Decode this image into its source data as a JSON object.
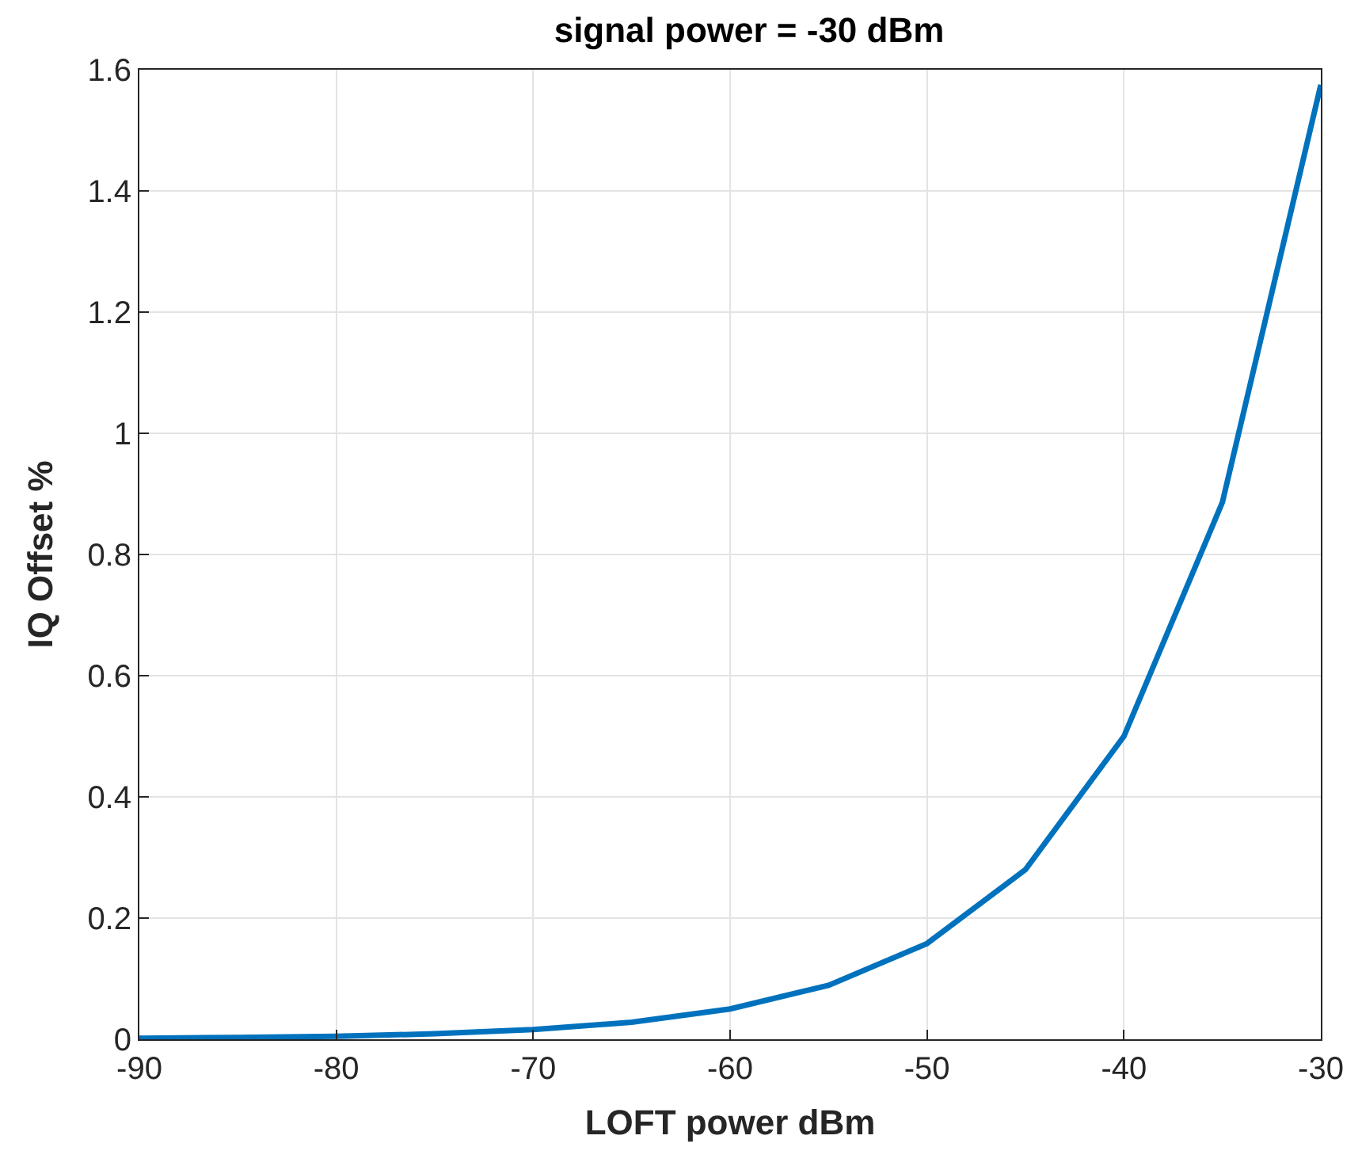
{
  "chart_data": {
    "type": "line",
    "title": "signal power = -30 dBm",
    "xlabel": "LOFT power dBm",
    "ylabel": "IQ Offset %",
    "x": [
      -90,
      -85,
      -80,
      -75,
      -70,
      -65,
      -60,
      -55,
      -50,
      -45,
      -40,
      -35,
      -30
    ],
    "series": [
      {
        "color": "#0072bd",
        "values": [
          0.0016,
          0.003,
          0.005,
          0.009,
          0.016,
          0.028,
          0.05,
          0.089,
          0.158,
          0.28,
          0.5,
          0.886,
          1.575
        ]
      }
    ],
    "xlim": [
      -90,
      -30
    ],
    "xticks": [
      -90,
      -80,
      -70,
      -60,
      -50,
      -40,
      -30
    ],
    "ylim": [
      0,
      1.6
    ],
    "yticks": [
      0,
      0.2,
      0.4,
      0.6,
      0.8,
      1,
      1.2,
      1.4,
      1.6
    ],
    "grid": true,
    "marker": "none",
    "line_style": "solid"
  }
}
